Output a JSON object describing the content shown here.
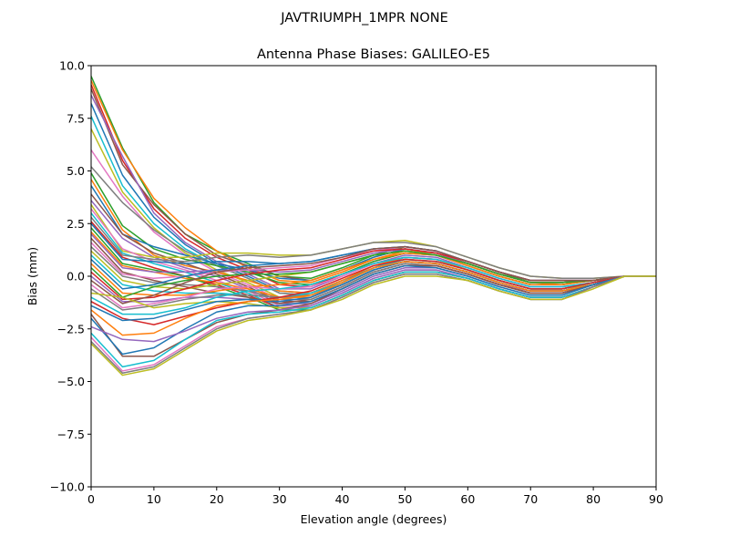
{
  "chart_data": {
    "type": "line",
    "suptitle": "JAVTRIUMPH_1MPR NONE",
    "title": "Antenna Phase Biases: GALILEO-E5",
    "xlabel": "Elevation angle (degrees)",
    "ylabel": "Bias (mm)",
    "xlim": [
      0,
      90
    ],
    "ylim": [
      -10,
      10
    ],
    "xticks": [
      0,
      10,
      20,
      30,
      40,
      50,
      60,
      70,
      80,
      90
    ],
    "yticks": [
      -10.0,
      -7.5,
      -5.0,
      -2.5,
      0.0,
      2.5,
      5.0,
      7.5,
      10.0
    ],
    "ytick_labels": [
      "−10.0",
      "−7.5",
      "−5.0",
      "−2.5",
      "0.0",
      "2.5",
      "5.0",
      "7.5",
      "10.0"
    ],
    "grid": false,
    "x": [
      0,
      5,
      10,
      15,
      20,
      25,
      30,
      35,
      40,
      45,
      50,
      55,
      60,
      65,
      70,
      75,
      80,
      85,
      90
    ],
    "series": [
      {
        "color": "#2ca02c",
        "values": [
          9.5,
          6.1,
          3.5,
          2.0,
          1.2,
          0.6,
          0.0,
          -0.1,
          0.4,
          1.0,
          1.4,
          1.2,
          0.7,
          0.2,
          -0.3,
          -0.3,
          -0.2,
          0.0,
          0.0
        ]
      },
      {
        "color": "#ff7f0e",
        "values": [
          9.3,
          6.0,
          3.7,
          2.3,
          1.2,
          0.4,
          -0.2,
          -0.3,
          0.2,
          0.8,
          1.2,
          1.1,
          0.6,
          0.1,
          -0.3,
          -0.4,
          -0.2,
          0.0,
          0.0
        ]
      },
      {
        "color": "#d62728",
        "values": [
          9.1,
          5.5,
          3.2,
          1.8,
          0.9,
          0.3,
          -0.4,
          -0.5,
          0.1,
          0.7,
          1.1,
          1.0,
          0.5,
          0.0,
          -0.4,
          -0.4,
          -0.2,
          0.0,
          0.0
        ]
      },
      {
        "color": "#8c564b",
        "values": [
          8.9,
          5.3,
          3.4,
          2.0,
          1.0,
          0.5,
          0.0,
          -0.2,
          0.3,
          0.9,
          1.3,
          1.1,
          0.6,
          0.1,
          -0.3,
          -0.3,
          -0.2,
          0.0,
          0.0
        ]
      },
      {
        "color": "#9467bd",
        "values": [
          8.6,
          5.7,
          3.0,
          1.6,
          0.7,
          0.1,
          -0.6,
          -0.6,
          0.0,
          0.6,
          1.0,
          0.9,
          0.4,
          -0.1,
          -0.5,
          -0.5,
          -0.3,
          0.0,
          0.0
        ]
      },
      {
        "color": "#1f77b4",
        "values": [
          8.2,
          4.8,
          2.8,
          1.5,
          0.6,
          0.0,
          -0.7,
          -0.8,
          -0.2,
          0.4,
          0.9,
          0.8,
          0.3,
          -0.2,
          -0.6,
          -0.6,
          -0.3,
          0.0,
          0.0
        ]
      },
      {
        "color": "#17becf",
        "values": [
          7.6,
          4.3,
          2.5,
          1.3,
          0.5,
          -0.1,
          -0.8,
          -0.9,
          -0.3,
          0.4,
          0.8,
          0.7,
          0.3,
          -0.2,
          -0.6,
          -0.6,
          -0.3,
          0.0,
          0.0
        ]
      },
      {
        "color": "#bcbd22",
        "values": [
          7.0,
          4.0,
          2.3,
          1.1,
          0.3,
          -0.3,
          -1.0,
          -1.0,
          -0.4,
          0.3,
          0.7,
          0.6,
          0.2,
          -0.3,
          -0.7,
          -0.7,
          -0.3,
          0.0,
          0.0
        ]
      },
      {
        "color": "#e377c2",
        "values": [
          6.0,
          3.8,
          2.1,
          1.0,
          0.2,
          -0.4,
          -1.1,
          -1.1,
          -0.5,
          0.2,
          0.6,
          0.5,
          0.1,
          -0.4,
          -0.7,
          -0.7,
          -0.4,
          0.0,
          0.0
        ]
      },
      {
        "color": "#7f7f7f",
        "values": [
          5.2,
          3.5,
          2.2,
          1.2,
          0.5,
          -0.1,
          -0.8,
          -0.9,
          -0.3,
          0.4,
          0.8,
          0.7,
          0.3,
          -0.2,
          -0.6,
          -0.6,
          -0.3,
          0.0,
          0.0
        ]
      },
      {
        "color": "#2ca02c",
        "values": [
          4.9,
          2.4,
          1.3,
          0.8,
          0.5,
          0.2,
          -0.3,
          -0.4,
          0.1,
          0.7,
          1.1,
          1.0,
          0.5,
          0.0,
          -0.4,
          -0.4,
          -0.2,
          0.0,
          0.0
        ]
      },
      {
        "color": "#ff7f0e",
        "values": [
          4.6,
          2.2,
          1.0,
          0.5,
          0.2,
          -0.2,
          -0.7,
          -0.8,
          -0.2,
          0.5,
          0.9,
          0.8,
          0.3,
          -0.2,
          -0.6,
          -0.6,
          -0.3,
          0.0,
          0.0
        ]
      },
      {
        "color": "#1f77b4",
        "values": [
          4.3,
          2.0,
          1.4,
          1.0,
          0.6,
          0.3,
          -0.1,
          -0.2,
          0.3,
          0.9,
          1.3,
          1.1,
          0.6,
          0.1,
          -0.3,
          -0.3,
          -0.2,
          0.0,
          0.0
        ]
      },
      {
        "color": "#8c564b",
        "values": [
          3.9,
          2.0,
          1.1,
          0.6,
          0.1,
          -0.5,
          -1.2,
          -1.2,
          -0.6,
          0.1,
          0.5,
          0.5,
          0.1,
          -0.4,
          -0.8,
          -0.8,
          -0.4,
          0.0,
          0.0
        ]
      },
      {
        "color": "#9467bd",
        "values": [
          3.6,
          1.8,
          0.9,
          0.4,
          0.0,
          -0.6,
          -1.3,
          -1.3,
          -0.7,
          0.0,
          0.4,
          0.4,
          0.0,
          -0.5,
          -0.9,
          -0.9,
          -0.4,
          0.0,
          0.0
        ]
      },
      {
        "color": "#bcbd22",
        "values": [
          3.4,
          1.2,
          0.9,
          0.9,
          1.1,
          1.1,
          1.0,
          1.0,
          1.3,
          1.6,
          1.7,
          1.4,
          0.9,
          0.4,
          0.0,
          -0.1,
          -0.1,
          0.0,
          0.0
        ]
      },
      {
        "color": "#e377c2",
        "values": [
          3.2,
          1.3,
          0.7,
          0.3,
          -0.2,
          -0.7,
          -1.4,
          -1.4,
          -0.8,
          -0.1,
          0.3,
          0.3,
          -0.1,
          -0.6,
          -1.0,
          -1.0,
          -0.5,
          0.0,
          0.0
        ]
      },
      {
        "color": "#17becf",
        "values": [
          3.0,
          1.1,
          0.6,
          0.2,
          -0.3,
          -0.8,
          -1.5,
          -1.5,
          -0.9,
          -0.2,
          0.2,
          0.2,
          -0.1,
          -0.6,
          -1.0,
          -1.0,
          -0.5,
          0.0,
          0.0
        ]
      },
      {
        "color": "#7f7f7f",
        "values": [
          2.8,
          1.0,
          0.8,
          0.7,
          0.9,
          1.0,
          0.9,
          1.0,
          1.3,
          1.6,
          1.6,
          1.4,
          0.9,
          0.4,
          0.0,
          -0.1,
          -0.1,
          0.0,
          0.0
        ]
      },
      {
        "color": "#d62728",
        "values": [
          2.6,
          0.9,
          0.4,
          0.0,
          -0.4,
          -0.9,
          -1.5,
          -1.5,
          -0.9,
          -0.2,
          0.2,
          0.2,
          -0.1,
          -0.6,
          -1.0,
          -1.0,
          -0.5,
          0.0,
          0.0
        ]
      },
      {
        "color": "#1f77b4",
        "values": [
          2.5,
          0.8,
          0.7,
          0.6,
          0.7,
          0.7,
          0.6,
          0.7,
          1.0,
          1.3,
          1.4,
          1.2,
          0.7,
          0.2,
          -0.2,
          -0.2,
          -0.2,
          0.0,
          0.0
        ]
      },
      {
        "color": "#2ca02c",
        "values": [
          2.3,
          0.6,
          0.3,
          0.0,
          -0.5,
          -1.0,
          -1.6,
          -1.6,
          -1.0,
          -0.3,
          0.1,
          0.1,
          -0.2,
          -0.7,
          -1.1,
          -1.1,
          -0.5,
          0.0,
          0.0
        ]
      },
      {
        "color": "#ff7f0e",
        "values": [
          2.1,
          0.5,
          0.2,
          -0.1,
          -0.3,
          -0.6,
          -1.0,
          -1.0,
          -0.4,
          0.3,
          0.7,
          0.6,
          0.2,
          -0.3,
          -0.7,
          -0.7,
          -0.4,
          0.0,
          0.0
        ]
      },
      {
        "color": "#9467bd",
        "values": [
          2.0,
          0.4,
          0.2,
          0.2,
          0.3,
          0.3,
          0.2,
          0.3,
          0.7,
          1.1,
          1.3,
          1.1,
          0.6,
          0.1,
          -0.3,
          -0.3,
          -0.2,
          0.0,
          0.0
        ]
      },
      {
        "color": "#8c564b",
        "values": [
          1.8,
          0.2,
          -0.2,
          -0.5,
          -0.8,
          -1.0,
          -1.3,
          -1.1,
          -0.5,
          0.2,
          0.6,
          0.5,
          0.1,
          -0.4,
          -0.8,
          -0.8,
          -0.4,
          0.0,
          0.0
        ]
      },
      {
        "color": "#e377c2",
        "values": [
          1.6,
          0.1,
          -0.1,
          0.0,
          0.2,
          0.3,
          0.4,
          0.5,
          0.9,
          1.2,
          1.4,
          1.2,
          0.7,
          0.2,
          -0.2,
          -0.2,
          -0.2,
          0.0,
          0.0
        ]
      },
      {
        "color": "#7f7f7f",
        "values": [
          1.4,
          0.0,
          -0.3,
          -0.4,
          -0.5,
          -0.7,
          -1.1,
          -1.1,
          -0.5,
          0.2,
          0.6,
          0.5,
          0.1,
          -0.4,
          -0.8,
          -0.8,
          -0.4,
          0.0,
          0.0
        ]
      },
      {
        "color": "#bcbd22",
        "values": [
          1.2,
          -0.2,
          -0.5,
          -0.6,
          -0.4,
          -0.2,
          0.0,
          0.2,
          0.6,
          1.0,
          1.2,
          1.0,
          0.6,
          0.1,
          -0.3,
          -0.3,
          -0.2,
          0.0,
          0.0
        ]
      },
      {
        "color": "#17becf",
        "values": [
          1.0,
          -0.4,
          -0.7,
          -0.8,
          -0.8,
          -0.9,
          -1.0,
          -0.8,
          -0.3,
          0.4,
          0.8,
          0.7,
          0.3,
          -0.2,
          -0.6,
          -0.6,
          -0.3,
          0.0,
          0.0
        ]
      },
      {
        "color": "#1f77b4",
        "values": [
          0.8,
          -0.6,
          -0.4,
          0.0,
          0.3,
          0.5,
          0.6,
          0.7,
          1.0,
          1.3,
          1.4,
          1.2,
          0.7,
          0.2,
          -0.2,
          -0.2,
          -0.2,
          0.0,
          0.0
        ]
      },
      {
        "color": "#ff7f0e",
        "values": [
          0.6,
          -0.8,
          -0.9,
          -0.9,
          -0.7,
          -0.5,
          -0.4,
          -0.2,
          0.3,
          0.8,
          1.1,
          1.0,
          0.5,
          0.0,
          -0.4,
          -0.4,
          -0.2,
          0.0,
          0.0
        ]
      },
      {
        "color": "#2ca02c",
        "values": [
          0.4,
          -1.0,
          -0.5,
          -0.2,
          0.0,
          0.1,
          0.1,
          0.2,
          0.6,
          1.0,
          1.2,
          1.0,
          0.6,
          0.1,
          -0.3,
          -0.3,
          -0.2,
          0.0,
          0.0
        ]
      },
      {
        "color": "#d62728",
        "values": [
          0.2,
          -1.1,
          -1.0,
          -0.6,
          -0.2,
          0.1,
          0.3,
          0.4,
          0.8,
          1.2,
          1.3,
          1.1,
          0.7,
          0.2,
          -0.2,
          -0.2,
          -0.2,
          0.0,
          0.0
        ]
      },
      {
        "color": "#9467bd",
        "values": [
          0.0,
          -1.2,
          -1.2,
          -1.0,
          -1.0,
          -1.1,
          -1.2,
          -1.0,
          -0.4,
          0.3,
          0.7,
          0.6,
          0.2,
          -0.3,
          -0.7,
          -0.7,
          -0.4,
          0.0,
          0.0
        ]
      },
      {
        "color": "#8c564b",
        "values": [
          -0.2,
          -1.3,
          -0.9,
          -0.3,
          0.2,
          0.4,
          0.5,
          0.6,
          0.9,
          1.3,
          1.4,
          1.2,
          0.7,
          0.2,
          -0.2,
          -0.2,
          -0.2,
          0.0,
          0.0
        ]
      },
      {
        "color": "#e377c2",
        "values": [
          -0.4,
          -1.5,
          -1.3,
          -1.0,
          -0.6,
          -0.5,
          -0.6,
          -0.5,
          0.0,
          0.6,
          0.9,
          0.8,
          0.4,
          -0.1,
          -0.5,
          -0.5,
          -0.3,
          0.0,
          0.0
        ]
      },
      {
        "color": "#7f7f7f",
        "values": [
          -0.6,
          -1.6,
          -1.4,
          -1.1,
          -0.9,
          -0.9,
          -1.0,
          -0.9,
          -0.4,
          0.3,
          0.7,
          0.6,
          0.2,
          -0.3,
          -0.7,
          -0.7,
          -0.4,
          0.0,
          0.0
        ]
      },
      {
        "color": "#bcbd22",
        "values": [
          -0.8,
          -1.0,
          -1.5,
          -1.3,
          -1.2,
          -1.3,
          -1.5,
          -1.5,
          -0.9,
          -0.2,
          0.2,
          0.2,
          -0.1,
          -0.6,
          -1.0,
          -1.0,
          -0.5,
          0.0,
          0.0
        ]
      },
      {
        "color": "#17becf",
        "values": [
          -1.0,
          -1.8,
          -1.8,
          -1.5,
          -1.0,
          -0.7,
          -0.6,
          -0.4,
          0.1,
          0.6,
          0.9,
          0.8,
          0.4,
          -0.1,
          -0.5,
          -0.5,
          -0.3,
          0.0,
          0.0
        ]
      },
      {
        "color": "#d62728",
        "values": [
          -1.2,
          -2.0,
          -2.3,
          -1.9,
          -1.5,
          -1.2,
          -1.0,
          -0.7,
          -0.1,
          0.5,
          0.8,
          0.7,
          0.3,
          -0.2,
          -0.6,
          -0.6,
          -0.3,
          0.0,
          0.0
        ]
      },
      {
        "color": "#1f77b4",
        "values": [
          -1.4,
          -2.1,
          -2.0,
          -1.6,
          -1.2,
          -1.1,
          -1.2,
          -1.0,
          -0.4,
          0.3,
          0.7,
          0.6,
          0.2,
          -0.3,
          -0.7,
          -0.7,
          -0.4,
          0.0,
          0.0
        ]
      },
      {
        "color": "#ff7f0e",
        "values": [
          -1.6,
          -2.8,
          -2.7,
          -2.0,
          -1.4,
          -1.2,
          -1.1,
          -0.9,
          -0.3,
          0.4,
          0.7,
          0.6,
          0.2,
          -0.3,
          -0.7,
          -0.7,
          -0.4,
          0.0,
          0.0
        ]
      },
      {
        "color": "#8c564b",
        "values": [
          -1.8,
          -3.8,
          -3.8,
          -3.0,
          -2.2,
          -1.8,
          -1.6,
          -1.3,
          -0.6,
          0.1,
          0.5,
          0.5,
          0.1,
          -0.4,
          -0.8,
          -0.8,
          -0.4,
          0.0,
          0.0
        ]
      },
      {
        "color": "#1f77b4",
        "values": [
          -2.0,
          -3.7,
          -3.4,
          -2.5,
          -1.7,
          -1.4,
          -1.4,
          -1.2,
          -0.6,
          0.1,
          0.5,
          0.4,
          0.0,
          -0.5,
          -0.9,
          -0.9,
          -0.4,
          0.0,
          0.0
        ]
      },
      {
        "color": "#9467bd",
        "values": [
          -2.4,
          -3.0,
          -3.1,
          -2.6,
          -2.0,
          -1.7,
          -1.6,
          -1.4,
          -0.8,
          -0.1,
          0.3,
          0.3,
          -0.1,
          -0.6,
          -1.0,
          -1.0,
          -0.5,
          0.0,
          0.0
        ]
      },
      {
        "color": "#17becf",
        "values": [
          -2.7,
          -4.3,
          -4.0,
          -3.0,
          -2.1,
          -1.8,
          -1.7,
          -1.5,
          -0.9,
          -0.2,
          0.2,
          0.2,
          -0.1,
          -0.6,
          -1.0,
          -1.0,
          -0.5,
          0.0,
          0.0
        ]
      },
      {
        "color": "#e377c2",
        "values": [
          -2.9,
          -4.5,
          -4.2,
          -3.3,
          -2.4,
          -2.0,
          -1.8,
          -1.6,
          -1.0,
          -0.3,
          0.1,
          0.1,
          -0.2,
          -0.7,
          -1.1,
          -1.1,
          -0.5,
          0.0,
          0.0
        ]
      },
      {
        "color": "#7f7f7f",
        "values": [
          -3.1,
          -4.6,
          -4.3,
          -3.4,
          -2.5,
          -2.0,
          -1.8,
          -1.6,
          -1.0,
          -0.3,
          0.1,
          0.1,
          -0.2,
          -0.7,
          -1.1,
          -1.1,
          -0.5,
          0.0,
          0.0
        ]
      },
      {
        "color": "#bcbd22",
        "values": [
          -3.2,
          -4.7,
          -4.4,
          -3.5,
          -2.6,
          -2.1,
          -1.9,
          -1.6,
          -1.1,
          -0.4,
          0.0,
          0.0,
          -0.2,
          -0.7,
          -1.1,
          -1.1,
          -0.6,
          0.0,
          0.0
        ]
      }
    ]
  }
}
